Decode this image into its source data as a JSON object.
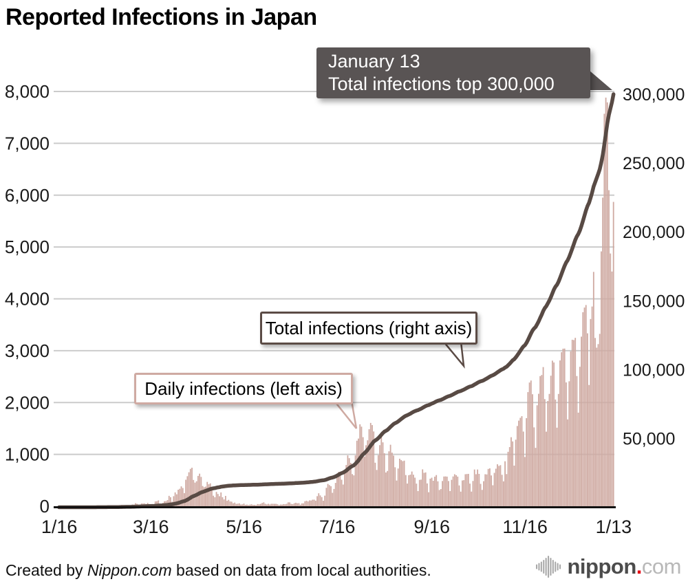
{
  "page": {
    "title": "Reported Infections in Japan"
  },
  "chart_data": {
    "type": "combo",
    "title": "Reported Infections in Japan",
    "x_ticks": [
      {
        "label": "1/16",
        "day": 0
      },
      {
        "label": "3/16",
        "day": 60
      },
      {
        "label": "5/16",
        "day": 121
      },
      {
        "label": "7/16",
        "day": 182
      },
      {
        "label": "9/16",
        "day": 244
      },
      {
        "label": "11/16",
        "day": 305
      },
      {
        "label": "1/13",
        "day": 363
      }
    ],
    "left_axis": {
      "ticks": [
        "0",
        "1,000",
        "2,000",
        "3,000",
        "4,000",
        "5,000",
        "6,000",
        "7,000",
        "8,000"
      ],
      "max": 8000
    },
    "right_axis": {
      "ticks": [
        "50,000",
        "100,000",
        "150,000",
        "200,000",
        "250,000",
        "300,000"
      ],
      "max": 300000
    },
    "grid_color": "#cbcbcb",
    "axis_color": "#111111",
    "series": [
      {
        "name": "Daily infections (left axis)",
        "type": "bar",
        "axis": "left",
        "color": "#cfaaa2",
        "values": [
          1,
          0,
          0,
          0,
          0,
          0,
          0,
          0,
          1,
          0,
          2,
          1,
          1,
          2,
          2,
          2,
          0,
          2,
          3,
          1,
          0,
          1,
          2,
          0,
          3,
          5,
          4,
          6,
          8,
          6,
          5,
          9,
          12,
          14,
          10,
          9,
          15,
          19,
          14,
          12,
          21,
          26,
          22,
          24,
          20,
          15,
          14,
          16,
          33,
          31,
          59,
          47,
          33,
          26,
          54,
          52,
          55,
          41,
          64,
          33,
          15,
          44,
          39,
          93,
          96,
          112,
          47,
          39,
          65,
          96,
          99,
          118,
          200,
          173,
          87,
          193,
          266,
          230,
          318,
          336,
          383,
          351,
          252,
          511,
          579,
          655,
          720,
          743,
          507,
          455,
          482,
          585,
          628,
          566,
          390,
          367,
          378,
          469,
          423,
          441,
          368,
          203,
          173,
          276,
          236,
          193,
          266,
          174,
          131,
          199,
          105,
          123,
          92,
          88,
          57,
          70,
          45,
          49,
          55,
          32,
          36,
          51,
          27,
          31,
          21,
          31,
          37,
          26,
          26,
          21,
          42,
          37,
          46,
          63,
          75,
          47,
          35,
          47,
          34,
          47,
          47,
          46,
          46,
          38,
          21,
          33,
          31,
          41,
          39,
          47,
          75,
          74,
          45,
          41,
          58,
          67,
          57,
          60,
          29,
          55,
          55,
          96,
          105,
          92,
          113,
          110,
          126,
          127,
          107,
          194,
          250,
          208,
          176,
          106,
          204,
          355,
          430,
          407,
          386,
          259,
          333,
          450,
          623,
          661,
          662,
          511,
          418,
          632,
          795,
          981,
          927,
          836,
          620,
          595,
          981,
          1264,
          1305,
          1580,
          1535,
          1332,
          959,
          1176,
          1271,
          1485,
          1607,
          1565,
          1442,
          839,
          699,
          985,
          1178,
          1361,
          1232,
          1021,
          651,
          680,
          1059,
          1186,
          1034,
          977,
          751,
          495,
          727,
          916,
          889,
          869,
          879,
          601,
          437,
          598,
          609,
          669,
          608,
          551,
          436,
          292,
          508,
          513,
          711,
          644,
          652,
          440,
          270,
          531,
          550,
          491,
          570,
          601,
          480,
          313,
          331,
          486,
          573,
          575,
          571,
          486,
          292,
          509,
          574,
          617,
          599,
          571,
          401,
          281,
          497,
          503,
          617,
          621,
          624,
          436,
          282,
          487,
          708,
          617,
          708,
          624,
          431,
          315,
          483,
          617,
          613,
          719,
          731,
          594,
          404,
          643,
          724,
          809,
          777,
          792,
          606,
          480,
          867,
          620,
          1050,
          1141,
          1331,
          1250,
          783,
          1284,
          1547,
          1651,
          1705,
          1737,
          1440,
          950,
          1699,
          2201,
          2386,
          2425,
          2160,
          1521,
          1126,
          1947,
          2169,
          2510,
          2531,
          2684,
          2066,
          1438,
          2030,
          2166,
          2518,
          2808,
          2773,
          2058,
          1515,
          2166,
          2812,
          2971,
          3039,
          3041,
          2388,
          1675,
          2410,
          2987,
          3211,
          3205,
          3248,
          2511,
          1805,
          2690,
          3271,
          3742,
          3832,
          3881,
          3335,
          2338,
          3611,
          3852,
          4520,
          3246,
          3059,
          3127,
          3325,
          4915,
          5953,
          7570,
          7882,
          7790,
          6096,
          4875,
          4527,
          5870
        ]
      },
      {
        "name": "Total infections (right axis)",
        "type": "line",
        "axis": "right",
        "color": "#584a44",
        "derivation": "cumulative_sum_of_daily_values",
        "final_value": 300000
      }
    ]
  },
  "annotations": {
    "event_callout": {
      "line1": "January 13",
      "line2": "Total infections top 300,000",
      "bg": "#595454"
    },
    "total_line_label": "Total infections (right axis)",
    "daily_bar_label": "Daily infections (left axis)"
  },
  "footer": {
    "created_by": "Created by ",
    "brand": "Nippon.com",
    "suffix": " based on data from local authorities."
  },
  "logo": {
    "name": "nippon",
    "dot": ".",
    "tld": "com",
    "dot_color": "#e60012",
    "bar_color": "#a9a9a9"
  }
}
